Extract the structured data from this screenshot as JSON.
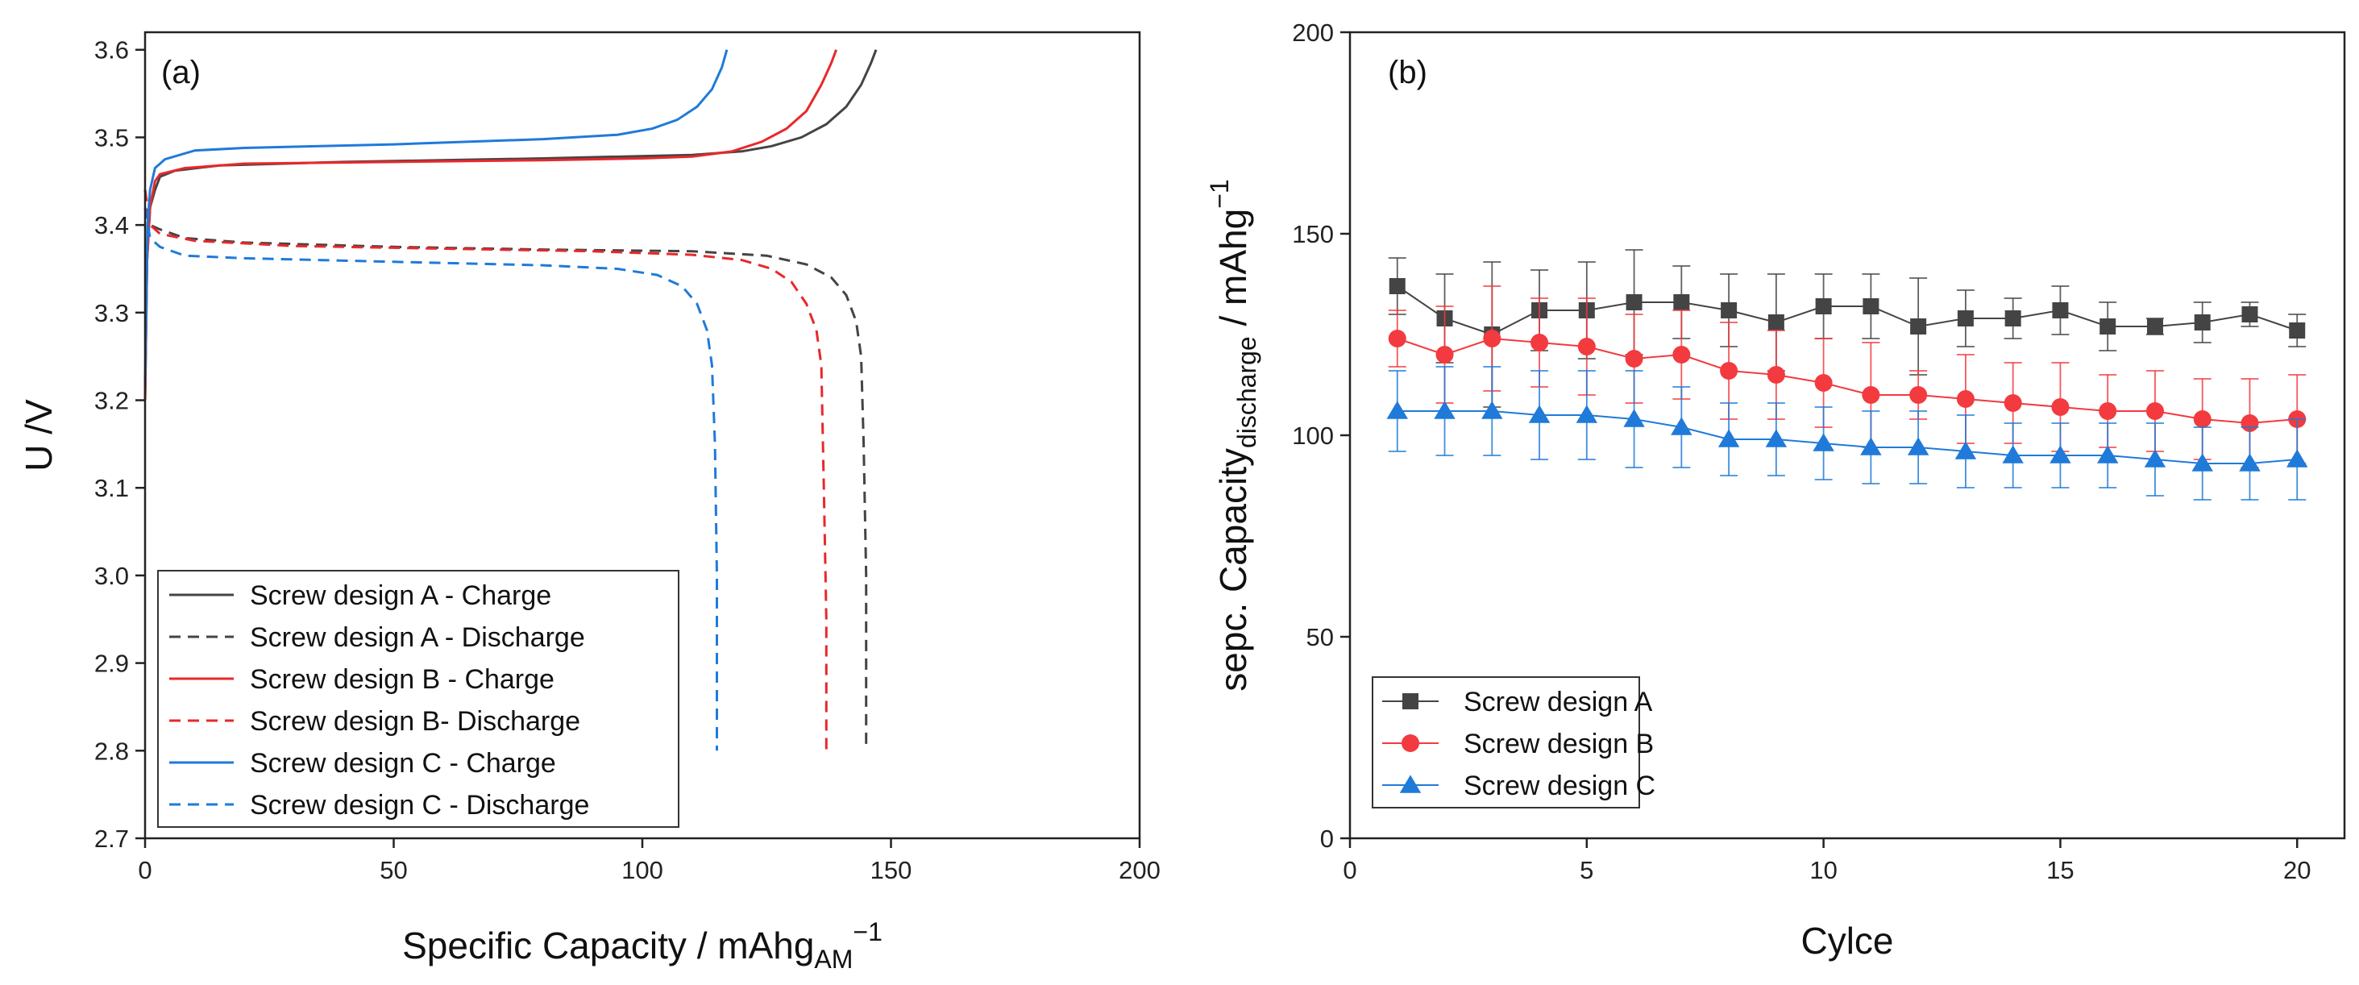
{
  "chart_data": [
    {
      "type": "line",
      "panel_label": "(a)",
      "xlabel": "Specific Capacity / mAhg",
      "xlabel_sub": "AM",
      "xlabel_sup": "−1",
      "ylabel": "U /V",
      "xlim": [
        0,
        200
      ],
      "ylim": [
        2.7,
        3.62
      ],
      "xticks": [
        "0",
        "50",
        "100",
        "150",
        "200"
      ],
      "yticks": [
        "2.7",
        "2.8",
        "2.9",
        "3.0",
        "3.1",
        "3.2",
        "3.3",
        "3.4",
        "3.5",
        "3.6"
      ],
      "grid": false,
      "legend_position": "bottom-left",
      "series": [
        {
          "name": "Screw design A - Charge",
          "color": "#444444",
          "dash": "solid",
          "points": [
            [
              0,
              3.2
            ],
            [
              0.4,
              3.36
            ],
            [
              1,
              3.42
            ],
            [
              2,
              3.44
            ],
            [
              3,
              3.455
            ],
            [
              6,
              3.462
            ],
            [
              15,
              3.468
            ],
            [
              40,
              3.472
            ],
            [
              80,
              3.476
            ],
            [
              110,
              3.48
            ],
            [
              120,
              3.484
            ],
            [
              126,
              3.49
            ],
            [
              132,
              3.5
            ],
            [
              137,
              3.515
            ],
            [
              141,
              3.535
            ],
            [
              144,
              3.56
            ],
            [
              146,
              3.585
            ],
            [
              147,
              3.6
            ]
          ]
        },
        {
          "name": "Screw design A - Discharge",
          "color": "#444444",
          "dash": "dashed",
          "points": [
            [
              0,
              3.44
            ],
            [
              1,
              3.4
            ],
            [
              3,
              3.395
            ],
            [
              8,
              3.385
            ],
            [
              20,
              3.38
            ],
            [
              50,
              3.375
            ],
            [
              80,
              3.372
            ],
            [
              110,
              3.37
            ],
            [
              125,
              3.365
            ],
            [
              133,
              3.355
            ],
            [
              138,
              3.34
            ],
            [
              141,
              3.32
            ],
            [
              143,
              3.29
            ],
            [
              144,
              3.25
            ],
            [
              144.5,
              3.15
            ],
            [
              145,
              3.0
            ],
            [
              145,
              2.8
            ]
          ]
        },
        {
          "name": "Screw design B - Charge",
          "color": "#e8282b",
          "dash": "solid",
          "points": [
            [
              0,
              3.2
            ],
            [
              0.4,
              3.36
            ],
            [
              1,
              3.42
            ],
            [
              2,
              3.45
            ],
            [
              3,
              3.458
            ],
            [
              8,
              3.465
            ],
            [
              20,
              3.47
            ],
            [
              50,
              3.472
            ],
            [
              80,
              3.474
            ],
            [
              100,
              3.476
            ],
            [
              110,
              3.478
            ],
            [
              118,
              3.484
            ],
            [
              124,
              3.495
            ],
            [
              129,
              3.51
            ],
            [
              133,
              3.53
            ],
            [
              136,
              3.56
            ],
            [
              138,
              3.585
            ],
            [
              139,
              3.6
            ]
          ]
        },
        {
          "name": "Screw design B- Discharge",
          "color": "#e8282b",
          "dash": "dashed",
          "points": [
            [
              0,
              3.44
            ],
            [
              1,
              3.4
            ],
            [
              3,
              3.39
            ],
            [
              10,
              3.382
            ],
            [
              30,
              3.376
            ],
            [
              60,
              3.373
            ],
            [
              90,
              3.37
            ],
            [
              110,
              3.366
            ],
            [
              120,
              3.36
            ],
            [
              126,
              3.35
            ],
            [
              130,
              3.335
            ],
            [
              133,
              3.31
            ],
            [
              135,
              3.28
            ],
            [
              136,
              3.24
            ],
            [
              136.5,
              3.1
            ],
            [
              137,
              2.95
            ],
            [
              137,
              2.8
            ]
          ]
        },
        {
          "name": "Screw design C - Charge",
          "color": "#1f7ad9",
          "dash": "solid",
          "points": [
            [
              0,
              3.22
            ],
            [
              0.5,
              3.4
            ],
            [
              1,
              3.44
            ],
            [
              2,
              3.465
            ],
            [
              4,
              3.475
            ],
            [
              10,
              3.485
            ],
            [
              20,
              3.488
            ],
            [
              50,
              3.492
            ],
            [
              80,
              3.498
            ],
            [
              95,
              3.503
            ],
            [
              102,
              3.51
            ],
            [
              107,
              3.52
            ],
            [
              111,
              3.535
            ],
            [
              114,
              3.555
            ],
            [
              116,
              3.58
            ],
            [
              117,
              3.6
            ]
          ]
        },
        {
          "name": "Screw design C - Discharge",
          "color": "#1f7ad9",
          "dash": "dashed",
          "points": [
            [
              0,
              3.42
            ],
            [
              1,
              3.385
            ],
            [
              3,
              3.375
            ],
            [
              8,
              3.365
            ],
            [
              20,
              3.362
            ],
            [
              50,
              3.358
            ],
            [
              80,
              3.354
            ],
            [
              95,
              3.35
            ],
            [
              103,
              3.343
            ],
            [
              108,
              3.33
            ],
            [
              111,
              3.31
            ],
            [
              113,
              3.28
            ],
            [
              114,
              3.24
            ],
            [
              114.6,
              3.15
            ],
            [
              115,
              3.0
            ],
            [
              115,
              2.8
            ]
          ]
        }
      ]
    },
    {
      "type": "scatter",
      "panel_label": "(b)",
      "xlabel": "Cylce",
      "ylabel": "sepc. Capacity",
      "ylabel_sub": "discharge",
      "ylabel_rest": " / mAhg",
      "ylabel_sup": "−1",
      "xlim": [
        0,
        21
      ],
      "ylim": [
        0,
        200
      ],
      "xticks": [
        "0",
        "5",
        "10",
        "15",
        "20"
      ],
      "yticks": [
        "0",
        "50",
        "100",
        "150",
        "200"
      ],
      "grid": false,
      "legend_position": "bottom-left",
      "x": [
        1,
        2,
        3,
        4,
        5,
        6,
        7,
        8,
        9,
        10,
        11,
        12,
        13,
        14,
        15,
        16,
        17,
        18,
        19,
        20
      ],
      "series": [
        {
          "name": "Screw design A",
          "color": "#444444",
          "marker": "square",
          "values": [
            137,
            129,
            125,
            131,
            131,
            133,
            133,
            131,
            128,
            132,
            132,
            127,
            129,
            129,
            131,
            127,
            127,
            128,
            130,
            126
          ],
          "error": [
            7,
            11,
            18,
            10,
            12,
            13,
            9,
            9,
            12,
            8,
            8,
            12,
            7,
            5,
            6,
            6,
            2,
            5,
            3,
            4
          ]
        },
        {
          "name": "Screw design B",
          "color": "#f23a3f",
          "marker": "circle",
          "values": [
            124,
            120,
            124,
            123,
            122,
            119,
            120,
            116,
            115,
            113,
            110,
            110,
            109,
            108,
            107,
            106,
            106,
            104,
            103,
            104
          ],
          "error": [
            7,
            12,
            13,
            11,
            12,
            11,
            11,
            12,
            11,
            11,
            13,
            6,
            11,
            10,
            11,
            9,
            10,
            10,
            11,
            11
          ]
        },
        {
          "name": "Screw design C",
          "color": "#1f7ad9",
          "marker": "triangle",
          "values": [
            106,
            106,
            106,
            105,
            105,
            104,
            102,
            99,
            99,
            98,
            97,
            97,
            96,
            95,
            95,
            95,
            94,
            93,
            93,
            94
          ],
          "error": [
            10,
            11,
            11,
            11,
            11,
            12,
            10,
            9,
            9,
            9,
            9,
            9,
            9,
            8,
            8,
            8,
            9,
            9,
            9,
            10
          ]
        }
      ]
    }
  ]
}
